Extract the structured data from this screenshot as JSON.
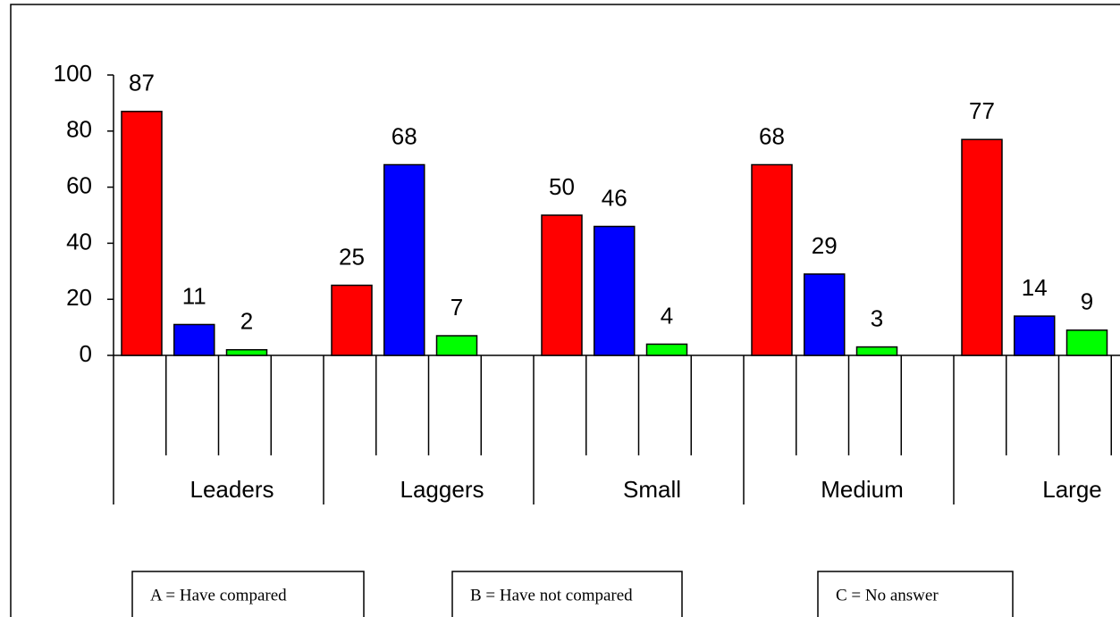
{
  "chart_data": {
    "type": "bar",
    "categories": [
      "Leaders",
      "Laggers",
      "Small",
      "Medium",
      "Large"
    ],
    "series": [
      {
        "name": "A = Have compared",
        "color": "#ff0000",
        "values": [
          87,
          25,
          50,
          68,
          77
        ]
      },
      {
        "name": "B = Have not compared",
        "color": "#0000ff",
        "values": [
          11,
          68,
          46,
          29,
          14
        ]
      },
      {
        "name": "C = No answer",
        "color": "#00ff00",
        "values": [
          2,
          7,
          4,
          3,
          9
        ]
      }
    ],
    "ylim": [
      0,
      100
    ],
    "yticks": [
      0,
      20,
      40,
      60,
      80,
      100
    ],
    "grid": false
  }
}
